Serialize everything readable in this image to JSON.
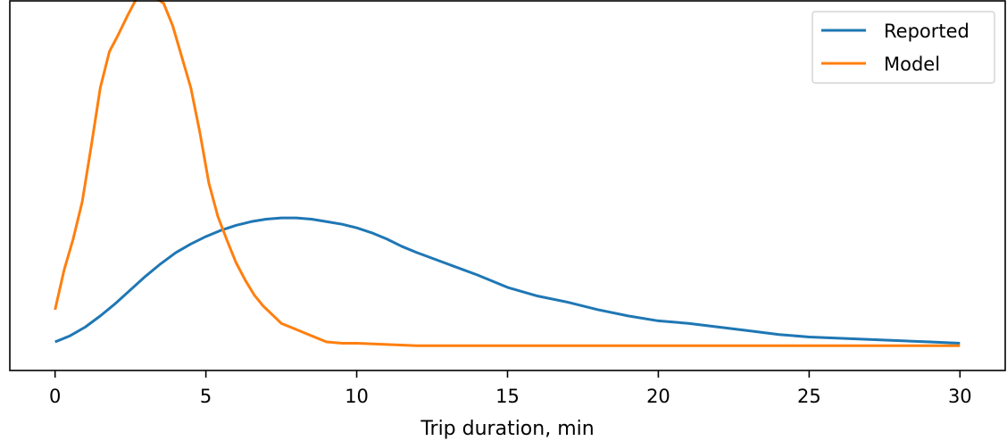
{
  "chart_data": {
    "type": "line",
    "title": "",
    "xlabel": "Trip duration, min",
    "ylabel": "",
    "xlim": [
      -1.5,
      31.5
    ],
    "ylim": [
      -0.006,
      0.292
    ],
    "x_ticks": [
      0,
      5,
      10,
      15,
      20,
      25,
      30
    ],
    "x_tick_labels": [
      "0",
      "5",
      "10",
      "15",
      "20",
      "25",
      "30"
    ],
    "y_ticks_visible": false,
    "grid": false,
    "legend": {
      "position": "top-right"
    },
    "series": [
      {
        "name": "Reported",
        "color": "#1f77b4",
        "x": [
          0,
          0.5,
          1,
          1.5,
          2,
          2.5,
          3,
          3.5,
          4,
          4.5,
          5,
          5.5,
          6,
          6.5,
          7,
          7.5,
          8,
          8.5,
          9,
          9.5,
          10,
          10.5,
          11,
          11.5,
          12,
          13,
          14,
          15,
          16,
          17,
          18,
          19,
          20,
          21,
          22,
          23,
          24,
          25,
          26,
          27,
          28,
          29,
          30
        ],
        "y": [
          0.017,
          0.022,
          0.029,
          0.038,
          0.048,
          0.059,
          0.07,
          0.08,
          0.089,
          0.096,
          0.102,
          0.107,
          0.111,
          0.114,
          0.116,
          0.117,
          0.117,
          0.116,
          0.114,
          0.112,
          0.109,
          0.105,
          0.1,
          0.094,
          0.089,
          0.08,
          0.071,
          0.061,
          0.054,
          0.049,
          0.043,
          0.038,
          0.034,
          0.032,
          0.029,
          0.026,
          0.023,
          0.021,
          0.02,
          0.019,
          0.018,
          0.017,
          0.016
        ]
      },
      {
        "name": "Model",
        "color": "#ff7f0e",
        "x": [
          0,
          0.3,
          0.6,
          0.9,
          1.2,
          1.5,
          1.8,
          2.1,
          2.4,
          2.7,
          3.0,
          3.3,
          3.6,
          3.9,
          4.2,
          4.5,
          4.8,
          5.1,
          5.4,
          5.7,
          6.0,
          6.3,
          6.6,
          6.9,
          7.2,
          7.5,
          8,
          8.5,
          9,
          9.5,
          10,
          11,
          12,
          13,
          14,
          16,
          18,
          20,
          22,
          24,
          26,
          28,
          30
        ],
        "y": [
          0.043,
          0.075,
          0.1,
          0.13,
          0.175,
          0.222,
          0.251,
          0.265,
          0.28,
          0.294,
          0.296,
          0.295,
          0.29,
          0.272,
          0.247,
          0.222,
          0.186,
          0.145,
          0.118,
          0.099,
          0.081,
          0.067,
          0.055,
          0.046,
          0.039,
          0.032,
          0.027,
          0.022,
          0.017,
          0.016,
          0.016,
          0.015,
          0.014,
          0.014,
          0.014,
          0.014,
          0.014,
          0.014,
          0.014,
          0.014,
          0.014,
          0.014,
          0.014
        ]
      }
    ]
  }
}
